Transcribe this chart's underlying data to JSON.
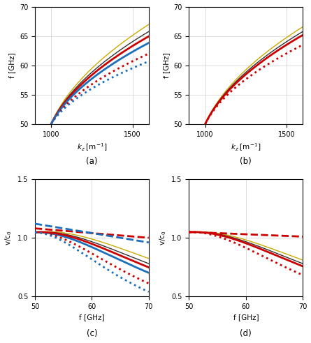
{
  "f_min": 50,
  "f_max": 70,
  "kz_min": 900,
  "kz_max": 1600,
  "v_min": 0.5,
  "v_max": 1.5,
  "subplot_labels": [
    "(a)",
    "(b)",
    "(c)",
    "(d)"
  ],
  "red": "#cc0000",
  "blue": "#1a6fbd",
  "black": "#333333",
  "orange": "#ccaa00",
  "gray": "#808080",
  "lw_thick": 2.0,
  "lw_thin": 1.0
}
